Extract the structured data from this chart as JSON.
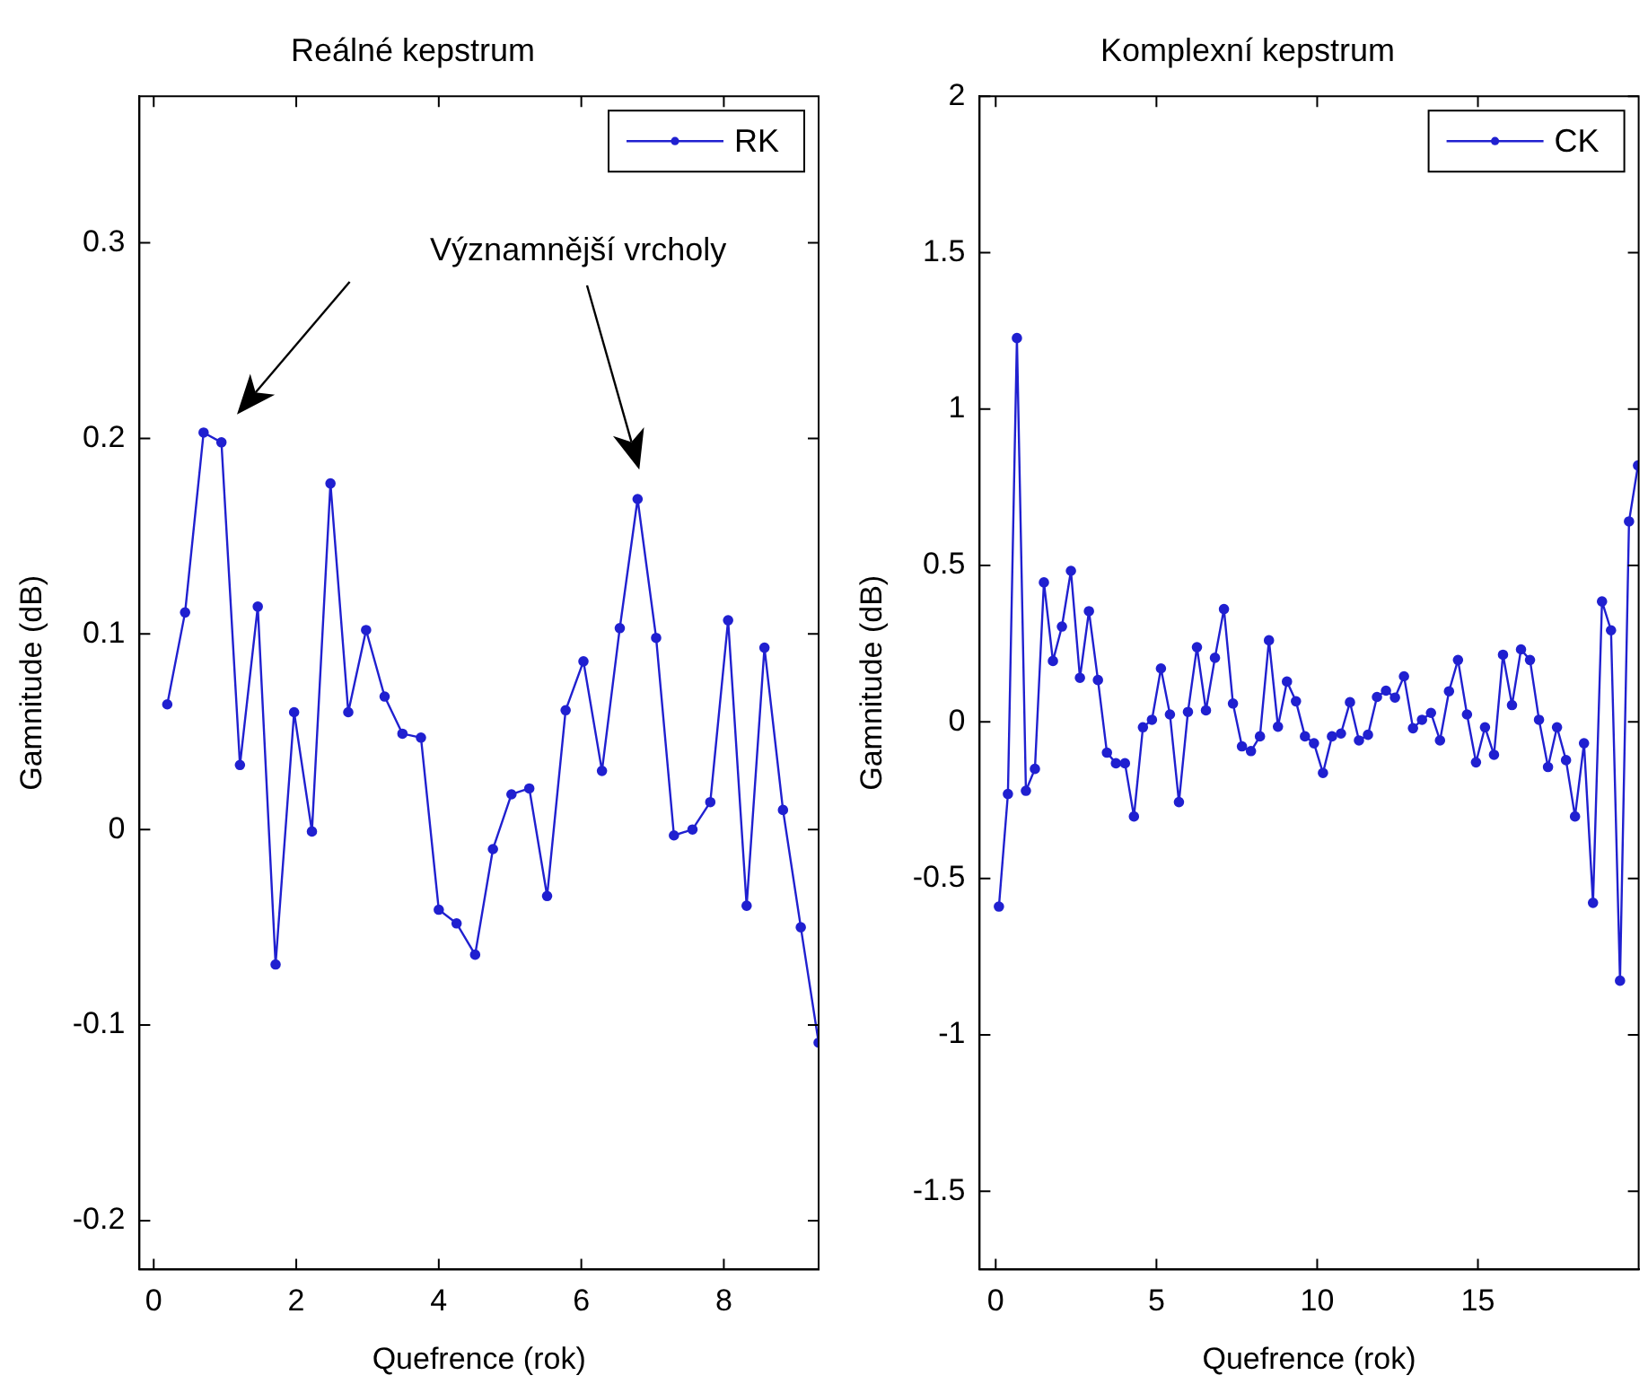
{
  "chart_data": [
    {
      "type": "line",
      "title": "Reálné kepstrum",
      "xlabel": "Quefrence (rok)",
      "ylabel": "Gamnitude (dB)",
      "marker": "circle",
      "legend": "top right",
      "annotations": [
        "Významnější vrcholy"
      ],
      "x": [
        0.19,
        0.44,
        0.7,
        0.95,
        1.21,
        1.46,
        1.71,
        1.97,
        2.22,
        2.48,
        2.73,
        2.98,
        3.24,
        3.49,
        3.75,
        4.0,
        4.25,
        4.51,
        4.76,
        5.02,
        5.27,
        5.52,
        5.78,
        6.03,
        6.29,
        6.54,
        6.79,
        7.05,
        7.3,
        7.56,
        7.81,
        8.06,
        8.32,
        8.57,
        8.83,
        9.08,
        9.33
      ],
      "series": [
        {
          "name": "RK",
          "color": "#2020d0",
          "values": [
            0.064,
            0.111,
            0.203,
            0.198,
            0.033,
            0.114,
            -0.069,
            0.06,
            -0.001,
            0.177,
            0.06,
            0.102,
            0.068,
            0.049,
            0.047,
            -0.041,
            -0.048,
            -0.064,
            -0.01,
            0.018,
            0.021,
            -0.034,
            0.061,
            0.086,
            0.03,
            0.103,
            0.169,
            0.098,
            -0.003,
            0.0,
            0.014,
            0.107,
            -0.039,
            0.093,
            0.01,
            -0.05,
            -0.109
          ]
        }
      ],
      "xlim": [
        -0.2,
        9.33
      ],
      "ylim": [
        -0.225,
        0.375
      ],
      "xticks": [
        0,
        2,
        4,
        6,
        8
      ],
      "yticks": [
        -0.2,
        -0.1,
        0,
        0.1,
        0.2,
        0.3
      ]
    },
    {
      "type": "line",
      "title": "Komplexní kepstrum",
      "xlabel": "Quefrence (rok)",
      "ylabel": "Gamnitude (dB)",
      "marker": "circle",
      "legend": "top right",
      "x": [
        0.1,
        0.38,
        0.66,
        0.94,
        1.22,
        1.5,
        1.78,
        2.06,
        2.34,
        2.62,
        2.9,
        3.18,
        3.46,
        3.74,
        4.02,
        4.3,
        4.58,
        4.86,
        5.14,
        5.42,
        5.7,
        5.98,
        6.26,
        6.54,
        6.82,
        7.1,
        7.38,
        7.66,
        7.94,
        8.22,
        8.5,
        8.78,
        9.06,
        9.34,
        9.62,
        9.9,
        10.18,
        10.46,
        10.74,
        11.02,
        11.3,
        11.58,
        11.86,
        12.14,
        12.42,
        12.7,
        12.98,
        13.26,
        13.54,
        13.82,
        14.1,
        14.38,
        14.66,
        14.94,
        15.22,
        15.5,
        15.78,
        16.06,
        16.34,
        16.62,
        16.9,
        17.18,
        17.46,
        17.74,
        18.02,
        18.3,
        18.58,
        18.86,
        19.14,
        19.42,
        19.7,
        19.98
      ],
      "series": [
        {
          "name": "CK",
          "color": "#2020d0",
          "values": [
            -0.59,
            -0.23,
            1.227,
            -0.22,
            -0.15,
            0.446,
            0.195,
            0.305,
            0.483,
            0.141,
            0.354,
            0.134,
            -0.098,
            -0.132,
            -0.132,
            -0.302,
            -0.017,
            0.007,
            0.171,
            0.024,
            -0.256,
            0.032,
            0.239,
            0.037,
            0.205,
            0.361,
            0.059,
            -0.078,
            -0.093,
            -0.046,
            0.261,
            -0.015,
            0.129,
            0.066,
            -0.046,
            -0.068,
            -0.163,
            -0.046,
            -0.037,
            0.063,
            -0.059,
            -0.041,
            0.08,
            0.1,
            0.078,
            0.146,
            -0.02,
            0.007,
            0.029,
            -0.059,
            0.098,
            0.198,
            0.024,
            -0.129,
            -0.017,
            -0.105,
            0.215,
            0.054,
            0.232,
            0.198,
            0.007,
            -0.144,
            -0.017,
            -0.122,
            -0.302,
            -0.068,
            -0.578,
            0.385,
            0.293,
            -0.827,
            0.641,
            0.82
          ]
        }
      ],
      "xlim": [
        -0.5,
        20
      ],
      "ylim": [
        -1.75,
        2
      ],
      "xticks": [
        0,
        5,
        10,
        15
      ],
      "yticks": [
        -1.5,
        -1,
        -0.5,
        0,
        0.5,
        1,
        1.5,
        2
      ]
    }
  ]
}
